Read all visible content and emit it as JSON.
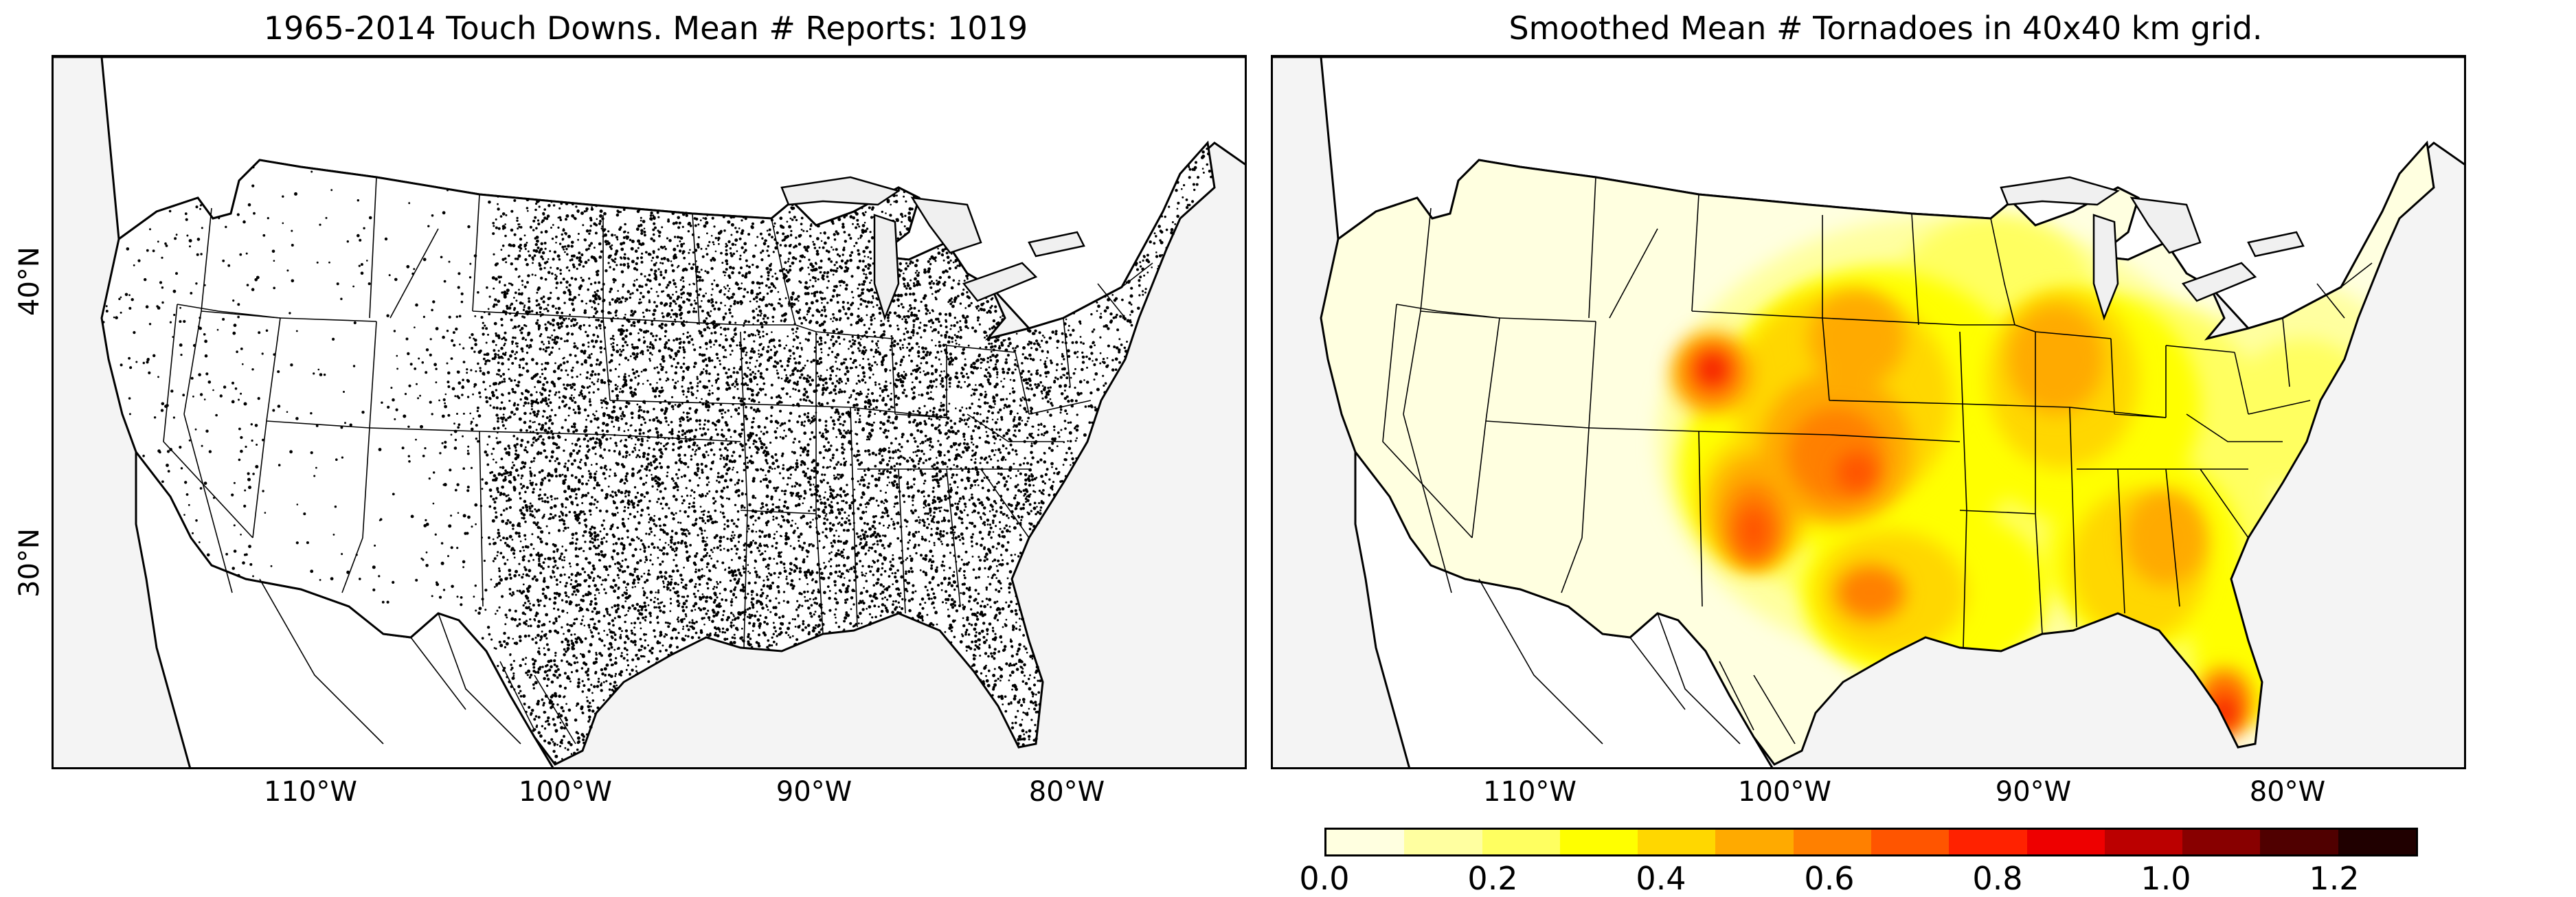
{
  "left_panel": {
    "title": "1965-2014 Touch Downs. Mean # Reports: 1019"
  },
  "right_panel": {
    "title": "Smoothed Mean # Tornadoes in 40x40 km grid."
  },
  "axes": {
    "lon_ticks": [
      "110°W",
      "100°W",
      "90°W",
      "80°W"
    ],
    "lat_ticks": [
      "40°N",
      "30°N"
    ]
  },
  "colorbar": {
    "ticks": [
      "0.0",
      "0.2",
      "0.4",
      "0.6",
      "0.8",
      "1.0",
      "1.2"
    ],
    "levels": [
      0.0,
      0.1,
      0.2,
      0.3,
      0.4,
      0.5,
      0.6,
      0.7,
      0.8,
      0.9,
      1.0,
      1.1,
      1.2,
      1.3
    ],
    "colors": [
      "#ffffe0",
      "#ffffa0",
      "#ffff60",
      "#ffff00",
      "#ffd700",
      "#ffaa00",
      "#ff8000",
      "#ff5500",
      "#ff2200",
      "#ee0000",
      "#bb0000",
      "#880000",
      "#500000",
      "#200000"
    ]
  },
  "colors": {
    "land": "#ffffff",
    "ocean": "#f4f4f4",
    "lake": "#e8e8e8",
    "dots": "#000000"
  }
}
